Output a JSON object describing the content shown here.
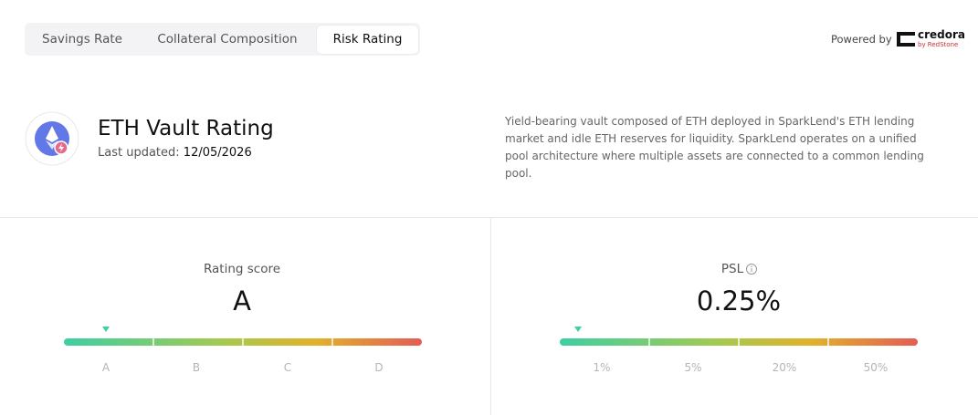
{
  "tabs": [
    "Savings Rate",
    "Collateral Composition",
    "Risk Rating"
  ],
  "powered_by": {
    "label": "Powered by",
    "brand": "credora",
    "sub_brand": "by RedStone"
  },
  "header": {
    "title": "ETH Vault Rating",
    "updated_label": "Last updated:",
    "updated_date": "12/05/2026",
    "description": "Yield-bearing vault composed of ETH deployed in SparkLend's ETH lending market and idle ETH reserves for liquidity. SparkLend operates on a unified pool architecture where multiple assets are connected to a common lending pool."
  },
  "rating": {
    "label": "Rating score",
    "value": "A",
    "scale": [
      "A",
      "B",
      "C",
      "D"
    ]
  },
  "psl": {
    "label": "PSL",
    "value": "0.25%",
    "scale": [
      "1%",
      "5%",
      "20%",
      "50%"
    ]
  }
}
